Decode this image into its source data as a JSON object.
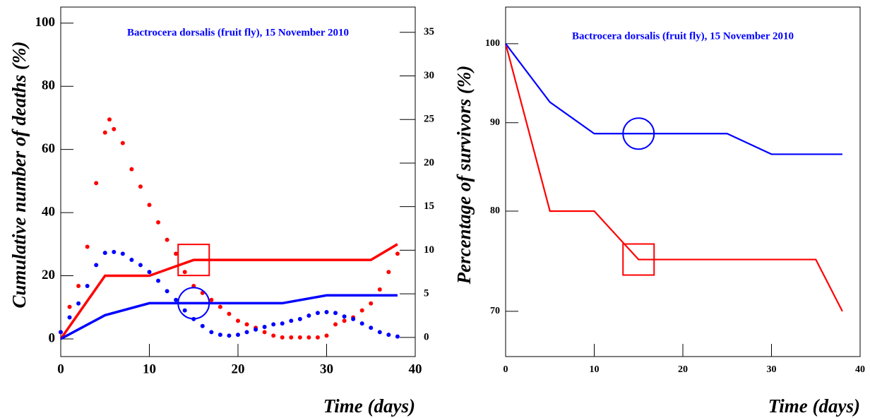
{
  "chart_data": [
    {
      "type": "line",
      "title": "Bactrocera dorsalis (fruit fly), 15 November 2010",
      "x_label": "Time (days)",
      "y_label": "Cumulative number of deaths (%)",
      "xlim": [
        0,
        40
      ],
      "xticks": [
        0,
        10,
        20,
        30,
        40
      ],
      "ylim": [
        -5.6,
        105.1
      ],
      "yticks": [
        0,
        20,
        40,
        60,
        80,
        100
      ],
      "y2lim": [
        -2.2,
        37.9
      ],
      "y2ticks": [
        0,
        5,
        10,
        15,
        20,
        25,
        30,
        35
      ],
      "series": [
        {
          "color": "#ff0000",
          "style": "solid",
          "x": [
            0,
            5,
            10,
            15,
            35,
            38
          ],
          "values": [
            0,
            20,
            20,
            25,
            25,
            30
          ]
        },
        {
          "color": "#0000ff",
          "style": "solid",
          "x": [
            0,
            5,
            10,
            25,
            30,
            38
          ],
          "values": [
            0,
            7.5,
            11.3,
            11.3,
            13.8,
            13.8
          ]
        },
        {
          "color": "#ff0000",
          "style": "dotted",
          "axis": "y2",
          "x": [
            0,
            1,
            2,
            3,
            4,
            5,
            5.5,
            6,
            7,
            8,
            9,
            10,
            11,
            12,
            13,
            14,
            15,
            16,
            17,
            18,
            19,
            20,
            21,
            22,
            23,
            24,
            25,
            26,
            27,
            28,
            29,
            30,
            31,
            32,
            33,
            34,
            35,
            36,
            37,
            38
          ],
          "values": [
            0.6,
            3.5,
            5.9,
            10.4,
            17.7,
            23.5,
            25,
            23.9,
            22.3,
            19.3,
            17.3,
            15.2,
            13.2,
            11.2,
            9.6,
            7.5,
            5.9,
            5.1,
            4.3,
            3.5,
            2.7,
            1.9,
            1.5,
            1.1,
            0.6,
            0.2,
            0,
            0,
            0,
            0,
            0,
            0.2,
            1.5,
            1.9,
            2.3,
            3.1,
            3.9,
            5.5,
            7.5,
            9.6
          ]
        },
        {
          "color": "#0000ff",
          "style": "dotted",
          "axis": "y2",
          "x": [
            0,
            1,
            2,
            3,
            4,
            5,
            6,
            7,
            8,
            9,
            10,
            11,
            12,
            13,
            14,
            15,
            16,
            17,
            18,
            19,
            20,
            21,
            22,
            23,
            24,
            25,
            26,
            27,
            28,
            29,
            30,
            31,
            32,
            33,
            34,
            35,
            36,
            37,
            38
          ],
          "values": [
            0.6,
            2.3,
            3.9,
            5.9,
            8.3,
            9.7,
            9.8,
            9.6,
            8.9,
            8.3,
            7.5,
            6.5,
            5.3,
            4.3,
            3.1,
            2.1,
            1.3,
            0.6,
            0.3,
            0.2,
            0.3,
            0.6,
            0.9,
            1.2,
            1.5,
            1.6,
            1.9,
            2.1,
            2.5,
            2.8,
            2.9,
            2.8,
            2.4,
            2.1,
            1.6,
            1.1,
            0.6,
            0.3,
            0.1
          ]
        }
      ],
      "markers": [
        {
          "shape": "square",
          "color": "#ff0000",
          "x": 15,
          "y": 25
        },
        {
          "shape": "circle",
          "color": "#0000ff",
          "x": 15,
          "y": 11.3
        }
      ]
    },
    {
      "type": "line",
      "title": "Bactrocera dorsalis (fruit fly), 15 November 2010",
      "x_label": "Time (days)",
      "y_label": "Percentage of survivors (%)",
      "xlim": [
        0,
        40
      ],
      "xticks": [
        0,
        10,
        20,
        30,
        40
      ],
      "ylim": [
        65.9,
        105
      ],
      "yticks": [
        70,
        80,
        90,
        100
      ],
      "ylog": true,
      "series": [
        {
          "color": "#ff0000",
          "style": "solid",
          "x": [
            0,
            5,
            10,
            15,
            35,
            38
          ],
          "values": [
            100,
            80,
            80,
            75,
            75,
            70
          ]
        },
        {
          "color": "#0000ff",
          "style": "solid",
          "x": [
            0,
            5,
            10,
            25,
            30,
            38
          ],
          "values": [
            100,
            92.5,
            88.7,
            88.7,
            86.3,
            86.3
          ]
        }
      ],
      "markers": [
        {
          "shape": "square",
          "color": "#ff0000",
          "x": 15,
          "y": 75
        },
        {
          "shape": "circle",
          "color": "#0000ff",
          "x": 15,
          "y": 88.7
        }
      ]
    }
  ]
}
